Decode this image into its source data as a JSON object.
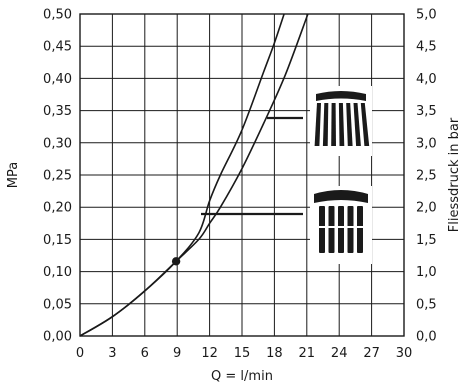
{
  "chart_data": {
    "type": "line",
    "xlabel": "Q = l/min",
    "ylabel_left": "MPa",
    "ylabel_right": "Fliessdruck in bar",
    "xlim": [
      0,
      30
    ],
    "ylim_left": [
      0,
      0.5
    ],
    "ylim_right": [
      0,
      5
    ],
    "grid": true,
    "x_ticks": [
      "0",
      "3",
      "6",
      "9",
      "12",
      "15",
      "18",
      "21",
      "24",
      "27",
      "30"
    ],
    "y_ticks_left": [
      "0,00",
      "0,05",
      "0,10",
      "0,15",
      "0,20",
      "0,25",
      "0,30",
      "0,35",
      "0,40",
      "0,45",
      "0,50"
    ],
    "y_ticks_right": [
      "0,0",
      "0,5",
      "1,0",
      "1,5",
      "2,0",
      "2,5",
      "3,0",
      "3,5",
      "4,0",
      "4,5",
      "5,0"
    ],
    "series": [
      {
        "icon": "wide-spray-head",
        "points": [
          [
            0,
            0
          ],
          [
            3,
            0.03
          ],
          [
            6,
            0.07
          ],
          [
            8.9,
            0.116
          ],
          [
            11,
            0.16
          ],
          [
            12,
            0.21
          ],
          [
            13,
            0.25
          ],
          [
            15,
            0.32
          ],
          [
            17,
            0.41
          ],
          [
            18,
            0.455
          ],
          [
            18.9,
            0.5
          ]
        ]
      },
      {
        "icon": "narrow-spray-head",
        "points": [
          [
            0,
            0
          ],
          [
            3,
            0.03
          ],
          [
            6,
            0.07
          ],
          [
            8.9,
            0.116
          ],
          [
            11,
            0.15
          ],
          [
            12,
            0.175
          ],
          [
            13,
            0.2
          ],
          [
            15,
            0.26
          ],
          [
            17,
            0.33
          ],
          [
            19,
            0.405
          ],
          [
            21.1,
            0.5
          ]
        ]
      }
    ],
    "marker": {
      "x": 8.9,
      "y": 0.116
    }
  }
}
